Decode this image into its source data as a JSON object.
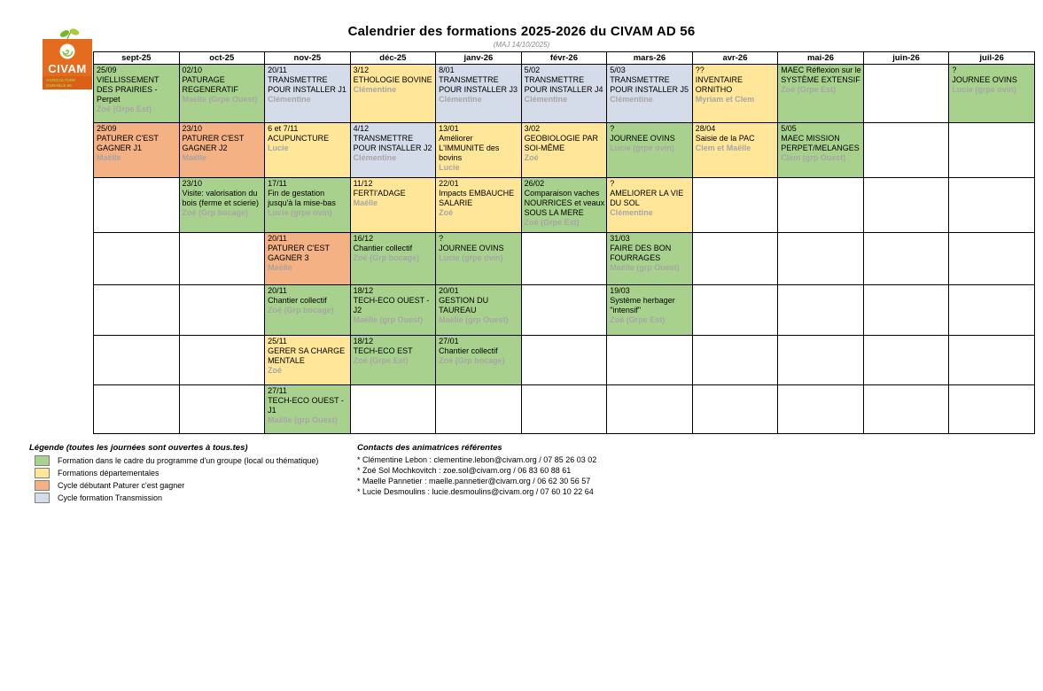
{
  "title": "Calendrier des formations 2025-2026 du CIVAM AD 56",
  "subtitle": "(MAJ 14/10/2025)",
  "logo": {
    "name": "CIVAM",
    "tagline_1": "AGRICULTURE",
    "tagline_2": "DURABLE 56"
  },
  "colors": {
    "group": "#a9d18e",
    "dept": "#ffe699",
    "cycle": "#f4b183",
    "transmission": "#d5dce9",
    "animator_text": "#a6a6a6"
  },
  "months": [
    "sept-25",
    "oct-25",
    "nov-25",
    "déc-25",
    "janv-26",
    "févr-26",
    "mars-26",
    "avr-26",
    "mai-26",
    "juin-26",
    "juil-26"
  ],
  "rows": [
    [
      {
        "d": "25/09",
        "t": "VIELLISSEMENT DES PRAIRIES - Perpet",
        "a": "Zoé (Grpe Est)",
        "c": "group"
      },
      {
        "d": "02/10",
        "t": "PATURAGE REGENERATIF",
        "a": "Maelle (Grpe Ouest)",
        "c": "group"
      },
      {
        "d": "20/11",
        "t": "TRANSMETTRE POUR INSTALLER J1",
        "a": "Clémentine",
        "c": "transmission"
      },
      {
        "d": "3/12",
        "t": "ETHOLOGIE BOVINE",
        "a": "Clémentine",
        "c": "dept"
      },
      {
        "d": "8/01",
        "t": "TRANSMETTRE POUR INSTALLER J3",
        "a": "Clémentine",
        "c": "transmission"
      },
      {
        "d": "5/02",
        "t": "TRANSMETTRE POUR INSTALLER J4",
        "a": "Clémentine",
        "c": "transmission"
      },
      {
        "d": "5/03",
        "t": "TRANSMETTRE POUR INSTALLER J5",
        "a": "Clémentine",
        "c": "transmission"
      },
      {
        "d": "??",
        "t": "INVENTAIRE ORNITHO",
        "a": "Myriam et Clem",
        "c": "dept"
      },
      {
        "d": "",
        "t": "MAEC Réflexion sur le SYSTÈME EXTENSIF",
        "a": "Zoé (Grpe Est)",
        "c": "group"
      },
      null,
      {
        "d": "?",
        "t": "JOURNEE OVINS",
        "a": "Lucie (grpe ovin)",
        "c": "group"
      }
    ],
    [
      {
        "d": "25/09",
        "t": "PATURER C'EST GAGNER J1",
        "a": "Maëlle",
        "c": "cycle"
      },
      {
        "d": "23/10",
        "t": "PATURER C'EST GAGNER J2",
        "a": "Maëlle",
        "c": "cycle"
      },
      {
        "d": "6 et 7/11",
        "t": "ACUPUNCTURE",
        "a": "Lucie",
        "c": "dept"
      },
      {
        "d": "4/12",
        "t": "TRANSMETTRE POUR INSTALLER J2",
        "a": "Clémentine",
        "c": "transmission"
      },
      {
        "d": "13/01",
        "t": "Améliorer L'IMMUNITE des bovins",
        "a": "Lucie",
        "c": "dept"
      },
      {
        "d": "3/02",
        "t": "GEOBIOLOGIE PAR SOI-MÊME",
        "a": "Zoé",
        "c": "dept"
      },
      {
        "d": "?",
        "t": "JOURNEE OVINS",
        "a": "Lucie (grpe ovin)",
        "c": "group"
      },
      {
        "d": "28/04",
        "t": "Saisie de la PAC",
        "a": "Clem et Maëlle",
        "c": "dept"
      },
      {
        "d": "5/05",
        "t": "MAEC MISSION PERPET/MELANGES",
        "a": "Clem (grp Ouest)",
        "c": "group"
      },
      null,
      null
    ],
    [
      null,
      {
        "d": "23/10",
        "t": "Visite: valorisation du bois (ferme et scierie)",
        "a": "Zoé (Grp bocage)",
        "c": "group"
      },
      {
        "d": "17/11",
        "t": "Fin de gestation jusqu'à la mise-bas",
        "a": "Lucie (grpe ovin)",
        "c": "group"
      },
      {
        "d": "11/12",
        "t": "FERTI'ADAGE",
        "a": "Maëlle",
        "c": "dept"
      },
      {
        "d": "22/01",
        "t": "Impacts EMBAUCHE SALARIE",
        "a": "Zoé",
        "c": "dept"
      },
      {
        "d": "26/02",
        "t": "Comparaison vaches NOURRICES et veaux SOUS LA MERE",
        "a": "Zoé (Grpe Est)",
        "c": "group"
      },
      {
        "d": "?",
        "t": "AMELIORER LA VIE DU SOL",
        "a": "Clémentine",
        "c": "dept"
      },
      null,
      null,
      null,
      null
    ],
    [
      null,
      null,
      {
        "d": "20/11",
        "t": "PATURER C'EST GAGNER 3",
        "a": "Maëlle",
        "c": "cycle"
      },
      {
        "d": "16/12",
        "t": "Chantier collectif",
        "a": "Zoé (Grp bocage)",
        "c": "group"
      },
      {
        "d": "?",
        "t": "JOURNEE OVINS",
        "a": "Lucie (grpe ovin)",
        "c": "group"
      },
      null,
      {
        "d": "31/03",
        "t": "FAIRE DES BON FOURRAGES",
        "a": "Maëlle (grp Ouest)",
        "c": "group"
      },
      null,
      null,
      null,
      null
    ],
    [
      null,
      null,
      {
        "d": "20/11",
        "t": "Chantier collectif",
        "a": "Zoé (Grp bocage)",
        "c": "group"
      },
      {
        "d": "18/12",
        "t": "TECH-ECO OUEST - J2",
        "a": "Maëlle (grp Ouest)",
        "c": "group"
      },
      {
        "d": "20/01",
        "t": "GESTION DU TAUREAU",
        "a": "Maëlle (grp Ouest)",
        "c": "group"
      },
      null,
      {
        "d": "19/03",
        "t": "Système herbager \"intensif\"",
        "a": "Zoé (Grpe Est)",
        "c": "group"
      },
      null,
      null,
      null,
      null
    ],
    [
      null,
      null,
      {
        "d": "25/11",
        "t": "GERER SA CHARGE MENTALE",
        "a": "Zoé",
        "c": "dept"
      },
      {
        "d": "18/12",
        "t": "TECH-ECO EST",
        "a": "Zoé (Grpe Est)",
        "c": "group"
      },
      {
        "d": "27/01",
        "t": "Chantier collectif",
        "a": "Zoé (Grp bocage)",
        "c": "group"
      },
      null,
      null,
      null,
      null,
      null,
      null
    ],
    [
      null,
      null,
      {
        "d": "27/11",
        "t": "TECH-ECO OUEST - J1",
        "a": "Maëlle (grp Ouest)",
        "c": "group"
      },
      null,
      null,
      null,
      null,
      null,
      null,
      null,
      null
    ]
  ],
  "legend": {
    "title": "Légende (toutes les journées sont ouvertes à tous.tes)",
    "items": [
      {
        "label": "Formation dans le cadre du programme d'un groupe (local ou thématique)",
        "type": "group"
      },
      {
        "label": "Formations départementales",
        "type": "dept"
      },
      {
        "label": "Cycle débutant Paturer c'est gagner",
        "type": "cycle"
      },
      {
        "label": "Cycle formation Transmission",
        "type": "transmission"
      }
    ]
  },
  "contacts": {
    "title": "Contacts des animatrices référentes",
    "items": [
      "* Clémentine Lebon : clementine.lebon@civam.org / 07 85 26 03 02",
      "* Zoé Sol Mochkovitch : zoe.sol@civam.org / 06 83 60 88 61",
      "* Maelle Pannetier : maelle.pannetier@civam.org / 06 62 30 56 57",
      "* Lucie Desmoulins : lucie.desmoulins@civam.org / 07 60 10 22 64"
    ]
  }
}
